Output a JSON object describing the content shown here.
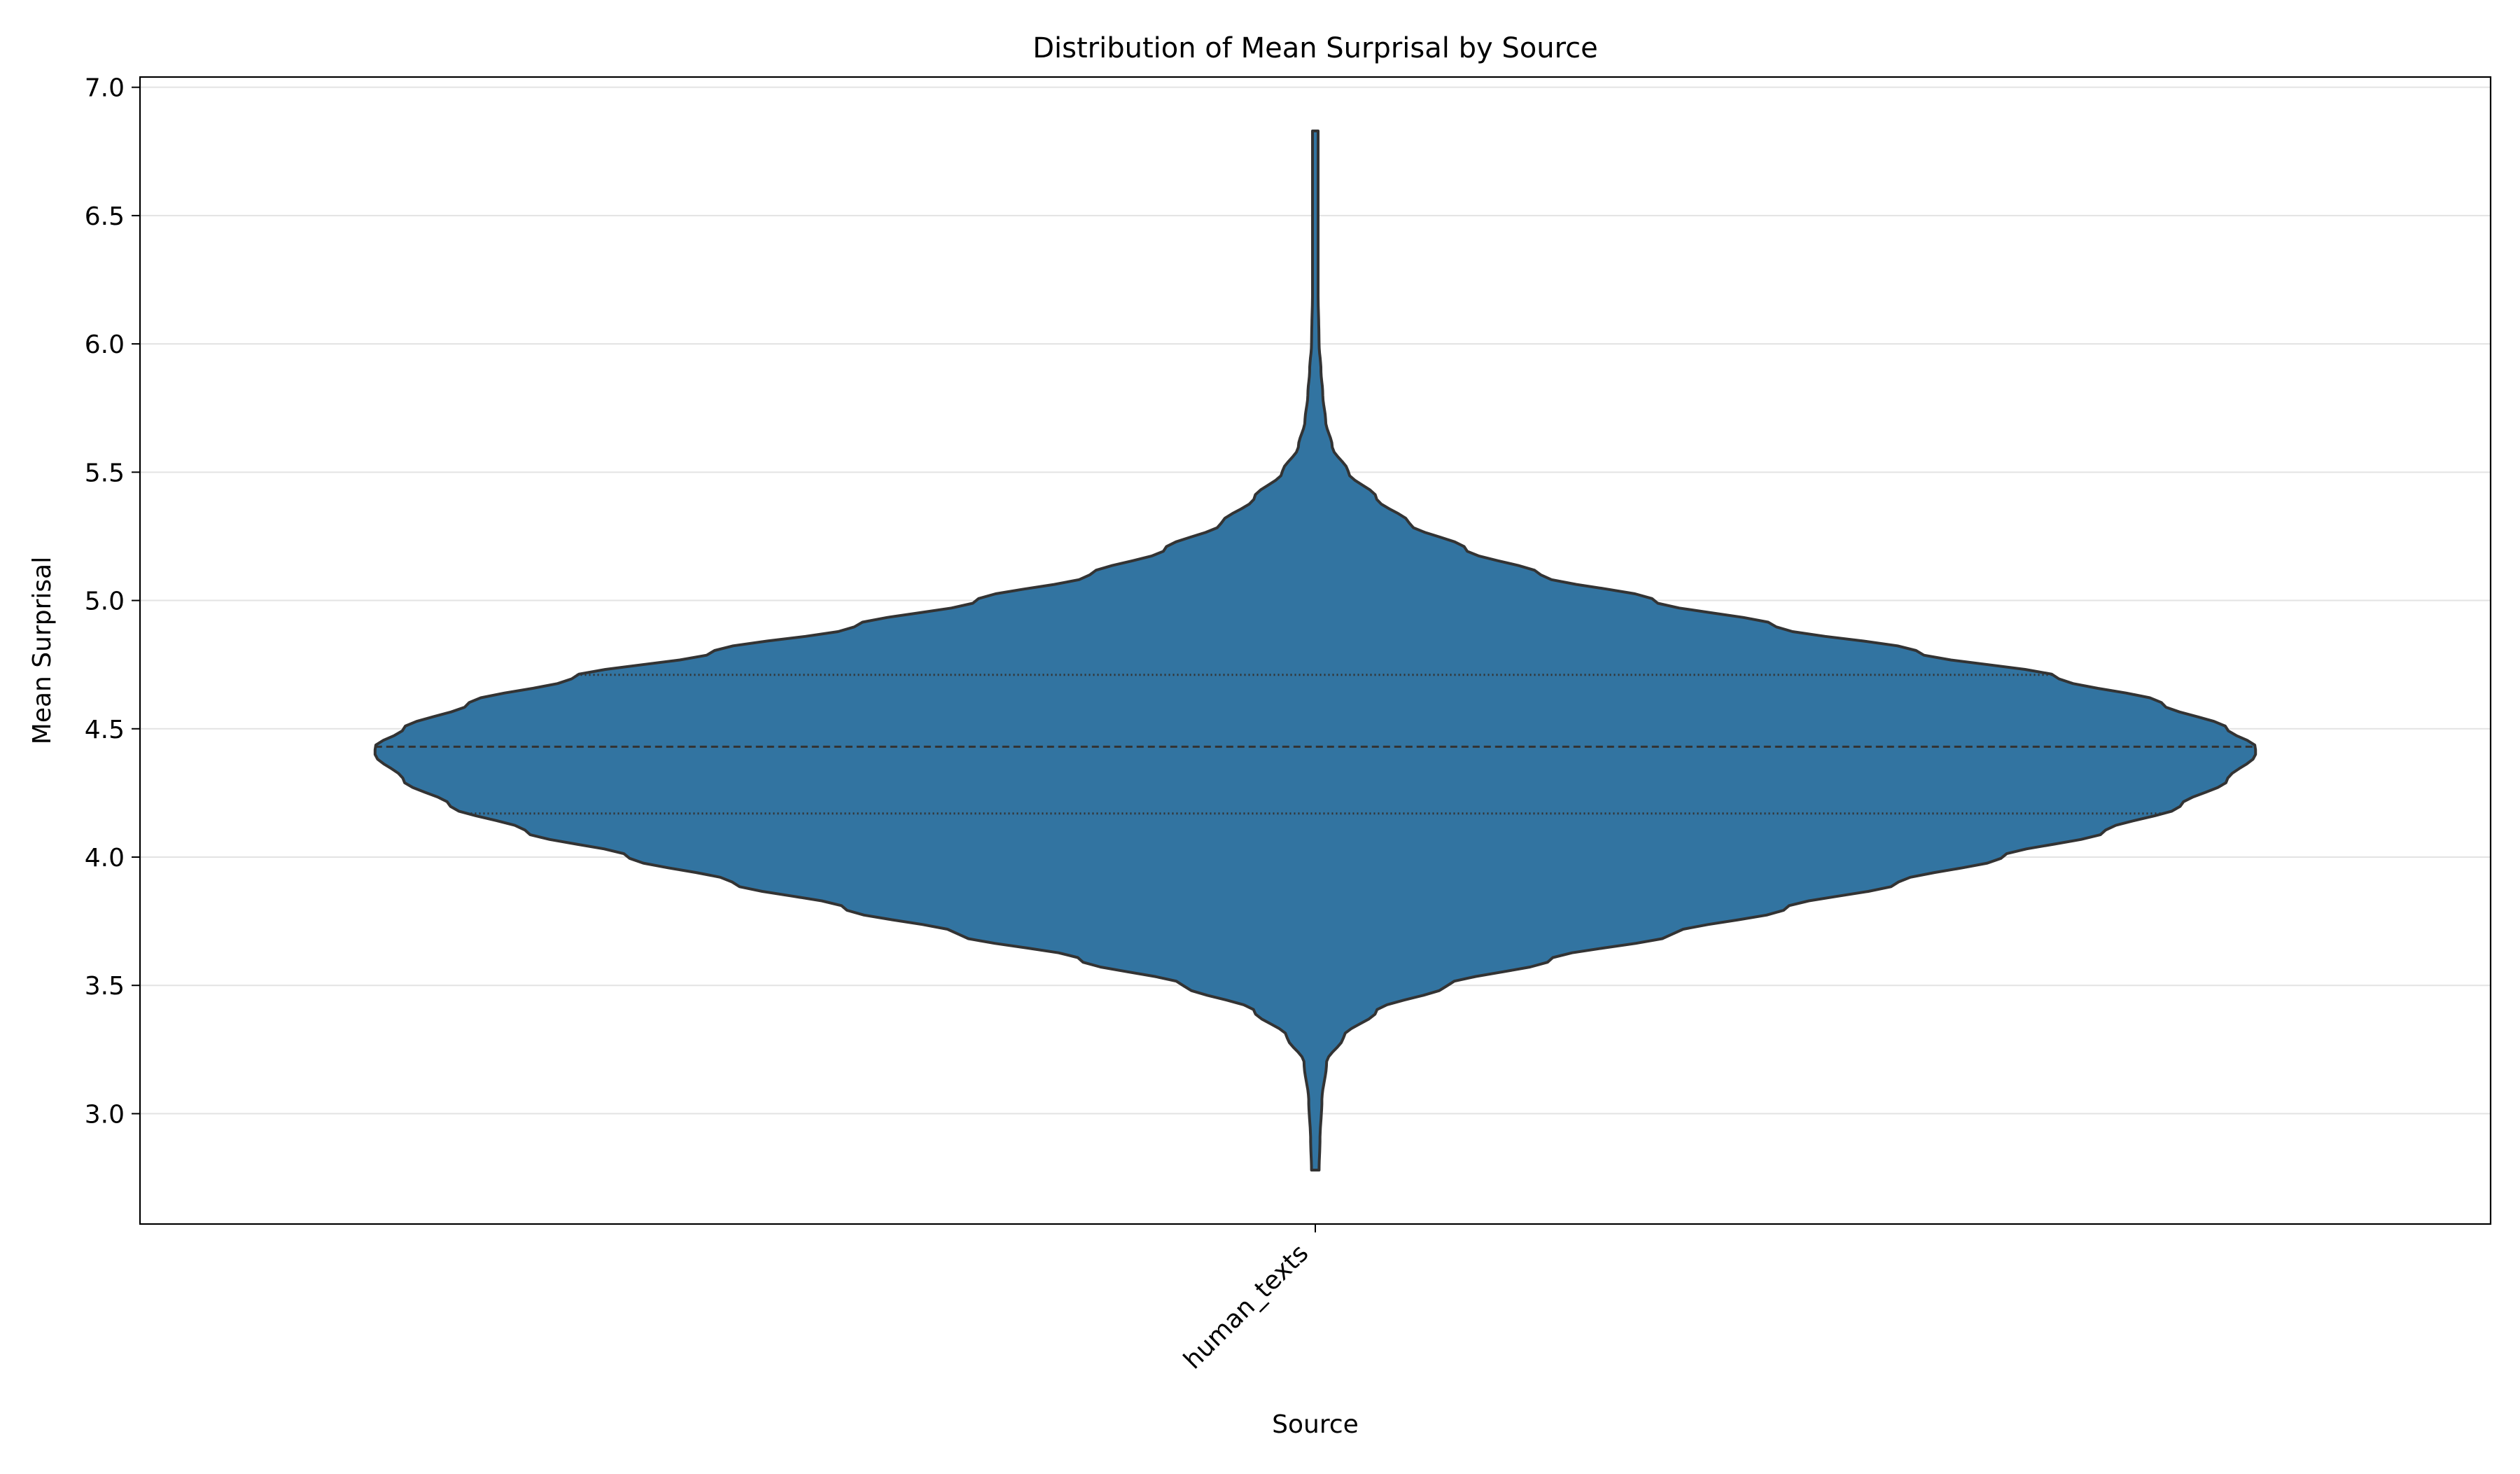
{
  "chart_data": {
    "type": "violin",
    "title": "Distribution of Mean Surprisal by Source",
    "xlabel": "Source",
    "ylabel": "Mean Surprisal",
    "categories": [
      "human_texts"
    ],
    "ylim": [
      2.57,
      7.04
    ],
    "yticks": [
      3.0,
      3.5,
      4.0,
      4.5,
      5.0,
      5.5,
      6.0,
      6.5,
      7.0
    ],
    "ytick_labels": [
      "3.0",
      "3.5",
      "4.0",
      "4.5",
      "5.0",
      "5.5",
      "6.0",
      "6.5",
      "7.0"
    ],
    "grid": "y",
    "legend": "none",
    "fill_color": "#3274a1",
    "edge_color": "#333333",
    "violins": [
      {
        "category": "human_texts",
        "min": 2.78,
        "max": 6.83,
        "q1": 4.17,
        "median": 4.43,
        "q3": 4.71,
        "density_profile": [
          [
            2.78,
            0.004
          ],
          [
            2.9,
            0.005
          ],
          [
            3.05,
            0.007
          ],
          [
            3.2,
            0.012
          ],
          [
            3.3,
            0.03
          ],
          [
            3.4,
            0.065
          ],
          [
            3.5,
            0.14
          ],
          [
            3.6,
            0.25
          ],
          [
            3.7,
            0.38
          ],
          [
            3.8,
            0.5
          ],
          [
            3.9,
            0.62
          ],
          [
            4.0,
            0.73
          ],
          [
            4.1,
            0.84
          ],
          [
            4.2,
            0.92
          ],
          [
            4.3,
            0.97
          ],
          [
            4.4,
            1.0
          ],
          [
            4.43,
            1.0
          ],
          [
            4.5,
            0.97
          ],
          [
            4.6,
            0.9
          ],
          [
            4.7,
            0.79
          ],
          [
            4.8,
            0.64
          ],
          [
            4.9,
            0.49
          ],
          [
            5.0,
            0.36
          ],
          [
            5.1,
            0.24
          ],
          [
            5.2,
            0.16
          ],
          [
            5.3,
            0.1
          ],
          [
            5.4,
            0.065
          ],
          [
            5.5,
            0.035
          ],
          [
            5.6,
            0.018
          ],
          [
            5.7,
            0.011
          ],
          [
            5.8,
            0.008
          ],
          [
            5.9,
            0.006
          ],
          [
            6.0,
            0.004
          ],
          [
            6.2,
            0.003
          ],
          [
            6.4,
            0.003
          ],
          [
            6.6,
            0.003
          ],
          [
            6.83,
            0.003
          ]
        ]
      }
    ]
  }
}
